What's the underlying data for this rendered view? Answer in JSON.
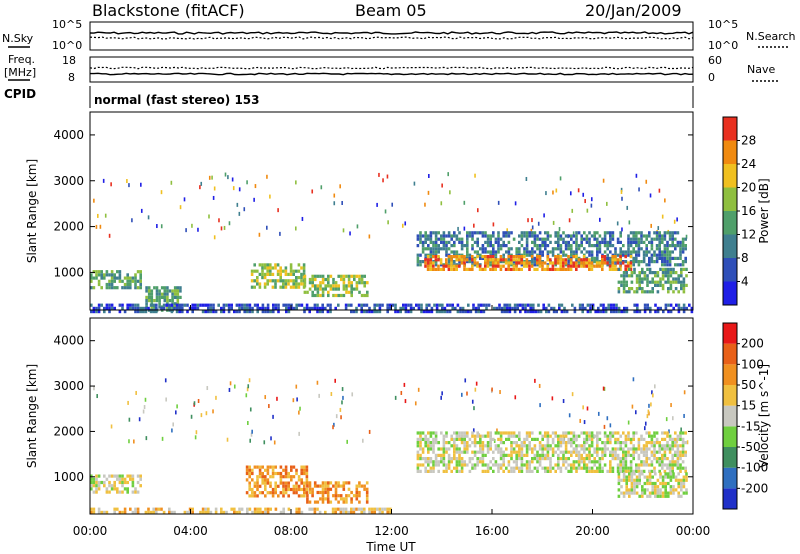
{
  "header": {
    "station": "Blackstone (fitACF)",
    "beam": "Beam 05",
    "date": "20/Jan/2009"
  },
  "nsky_panel": {
    "left_label": "N.Sky",
    "left_ticks": [
      "10^5",
      "10^0"
    ],
    "right_label": "N.Search",
    "right_ticks": [
      "10^5",
      "10^0"
    ]
  },
  "freq_panel": {
    "left_label_1": "Freq.",
    "left_label_2": "[MHz]",
    "left_ticks": [
      "18",
      "8"
    ],
    "right_label": "Nave",
    "right_ticks": [
      "60",
      "0"
    ]
  },
  "cpid": {
    "label": "CPID",
    "text": "normal (fast stereo) 153"
  },
  "x_axis": {
    "ticks": [
      "00:00",
      "04:00",
      "08:00",
      "12:00",
      "16:00",
      "20:00",
      "00:00"
    ],
    "label": "Time UT"
  },
  "chart_data": [
    {
      "type": "heatmap",
      "panel": "power",
      "ylabel": "Slant Range [km]",
      "yticks": [
        "1000",
        "2000",
        "3000",
        "4000"
      ],
      "ylim": [
        180,
        4500
      ],
      "xlim": [
        0,
        24
      ],
      "colorbar": {
        "label": "Power [dB]",
        "ticks": [
          "4",
          "8",
          "12",
          "16",
          "20",
          "24",
          "28"
        ],
        "colors": [
          "#1f1fe6",
          "#2f4fb8",
          "#3f7f8f",
          "#4f9f6a",
          "#8fbf3f",
          "#f0c020",
          "#f08a10",
          "#e83020"
        ]
      },
      "regions": [
        {
          "t": [
            0.0,
            2.0
          ],
          "range": [
            650,
            1050
          ],
          "level": 3
        },
        {
          "t": [
            2.2,
            3.6
          ],
          "range": [
            200,
            700
          ],
          "level": 3
        },
        {
          "t": [
            6.4,
            8.5
          ],
          "range": [
            700,
            1200
          ],
          "level": 4
        },
        {
          "t": [
            8.5,
            11.0
          ],
          "range": [
            500,
            950
          ],
          "level": 4
        },
        {
          "t": [
            13.0,
            23.7
          ],
          "range": [
            1200,
            1900
          ],
          "level": 2
        },
        {
          "t": [
            13.3,
            21.5
          ],
          "range": [
            1100,
            1380
          ],
          "level": 6
        },
        {
          "t": [
            21.0,
            23.7
          ],
          "range": [
            600,
            1100
          ],
          "level": 3
        },
        {
          "t": [
            0.0,
            24.0
          ],
          "range": [
            180,
            320
          ],
          "level": 1
        }
      ]
    },
    {
      "type": "heatmap",
      "panel": "velocity",
      "ylabel": "Slant Range [km]",
      "yticks": [
        "1000",
        "2000",
        "3000",
        "4000"
      ],
      "ylim": [
        180,
        4500
      ],
      "xlim": [
        0,
        24
      ],
      "colorbar": {
        "label": "Velocity [m s^-1]",
        "ticks": [
          "200",
          "100",
          "50",
          "15",
          "-15",
          "-50",
          "-100",
          "-200"
        ],
        "colors": [
          "#2030c8",
          "#2f6fc0",
          "#3f8f5f",
          "#6fcf3f",
          "#c8c8c0",
          "#f0c040",
          "#f09020",
          "#e86018",
          "#e81818"
        ]
      },
      "regions": [
        {
          "t": [
            0.0,
            2.0
          ],
          "range": [
            650,
            1050
          ],
          "level": 4
        },
        {
          "t": [
            6.2,
            8.6
          ],
          "range": [
            600,
            1250
          ],
          "level": 6
        },
        {
          "t": [
            8.6,
            11.0
          ],
          "range": [
            450,
            900
          ],
          "level": 6
        },
        {
          "t": [
            13.0,
            23.7
          ],
          "range": [
            1100,
            2000
          ],
          "level": 4
        },
        {
          "t": [
            21.0,
            23.7
          ],
          "range": [
            600,
            1100
          ],
          "level": 4
        },
        {
          "t": [
            0.0,
            12.0
          ],
          "range": [
            180,
            320
          ],
          "level": 5
        }
      ]
    }
  ]
}
